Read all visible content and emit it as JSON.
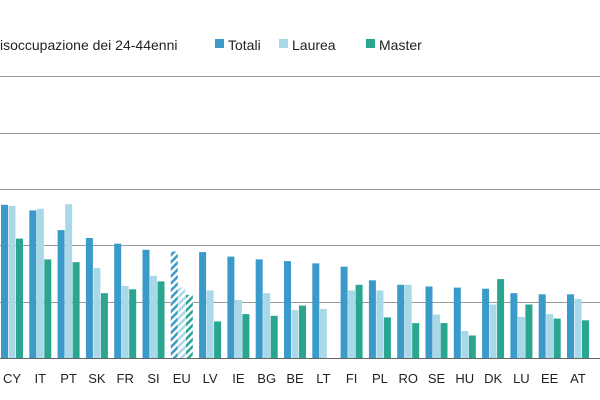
{
  "chart_data": {
    "type": "bar",
    "title": "isoccupazione dei 24-44enni",
    "legend_position": "top",
    "grid": true,
    "ylim": [
      0,
      6
    ],
    "series": [
      {
        "name": "Totali",
        "color": "#3a9ac9"
      },
      {
        "name": "Laurea",
        "color": "#a9d8e9"
      },
      {
        "name": "Master",
        "color": "#2aa58f"
      }
    ],
    "categories": [
      "CY",
      "IT",
      "PT",
      "SK",
      "FR",
      "SI",
      "EU",
      "LV",
      "IE",
      "BG",
      "BE",
      "LT",
      "FI",
      "PL",
      "RO",
      "SE",
      "HU",
      "DK",
      "LU",
      "EE",
      "AT"
    ],
    "values": {
      "Totali": [
        2.72,
        2.62,
        2.27,
        2.13,
        2.03,
        1.92,
        1.89,
        1.88,
        1.8,
        1.75,
        1.72,
        1.68,
        1.62,
        1.38,
        1.3,
        1.27,
        1.25,
        1.23,
        1.15,
        1.13,
        1.13
      ],
      "Laurea": [
        2.7,
        2.65,
        2.73,
        1.6,
        1.28,
        1.46,
        1.25,
        1.2,
        1.03,
        1.15,
        0.85,
        0.87,
        1.2,
        1.2,
        1.3,
        0.77,
        0.48,
        0.95,
        0.73,
        0.78,
        1.05
      ],
      "Master": [
        2.12,
        1.75,
        1.7,
        1.15,
        1.22,
        1.36,
        1.12,
        0.65,
        0.78,
        0.75,
        0.93,
        null,
        1.3,
        0.72,
        0.62,
        0.62,
        0.4,
        1.4,
        0.95,
        0.7,
        0.67
      ]
    },
    "hatched_categories": [
      "EU"
    ]
  }
}
